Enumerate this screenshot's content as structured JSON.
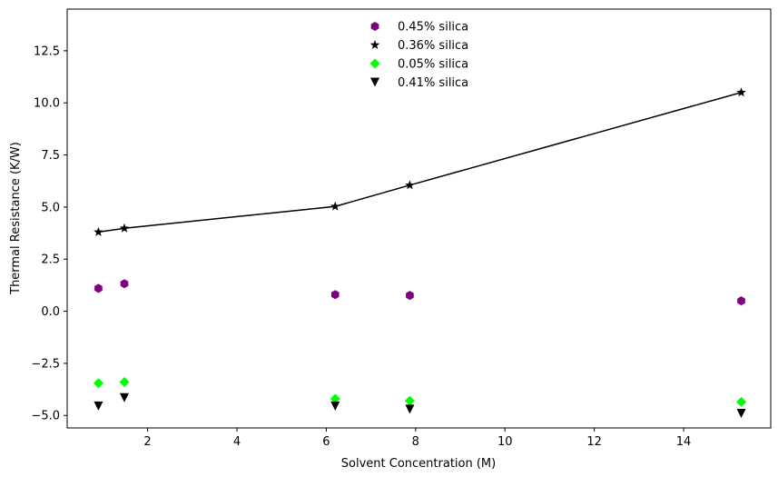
{
  "chart_data": {
    "type": "scatter",
    "title": "",
    "xlabel": "Solvent Concentration (M)",
    "ylabel": "Thermal Resistance (K/W)",
    "xlim": [
      0.2,
      15.95
    ],
    "ylim": [
      -5.6,
      14.5
    ],
    "xticks": [
      2,
      4,
      6,
      8,
      10,
      12,
      14
    ],
    "yticks": [
      -5.0,
      -2.5,
      0.0,
      2.5,
      5.0,
      7.5,
      10.0,
      12.5
    ],
    "xtick_labels": [
      "2",
      "4",
      "6",
      "8",
      "10",
      "12",
      "14"
    ],
    "ytick_labels": [
      "−5.0",
      "−2.5",
      "0.0",
      "2.5",
      "5.0",
      "7.5",
      "10.0",
      "12.5"
    ],
    "grid": false,
    "legend_position": "top-center",
    "x": [
      0.9,
      1.48,
      6.2,
      7.87,
      15.29
    ],
    "series": [
      {
        "name": "0.45% silica",
        "marker": "hexagon",
        "color": "#800080",
        "line": false,
        "values": [
          1.1,
          1.32,
          0.8,
          0.76,
          0.5
        ]
      },
      {
        "name": "0.36% silica",
        "marker": "star",
        "color": "#000000",
        "line": true,
        "values": [
          3.8,
          3.98,
          5.03,
          6.05,
          10.5
        ]
      },
      {
        "name": "0.05% silica",
        "marker": "diamond",
        "color": "#00ff00",
        "line": false,
        "values": [
          -3.45,
          -3.4,
          -4.2,
          -4.3,
          -4.35
        ]
      },
      {
        "name": "0.41% silica",
        "marker": "triangle-down",
        "color": "#000000",
        "line": false,
        "values": [
          -4.55,
          -4.15,
          -4.55,
          -4.7,
          -4.9
        ]
      }
    ]
  }
}
